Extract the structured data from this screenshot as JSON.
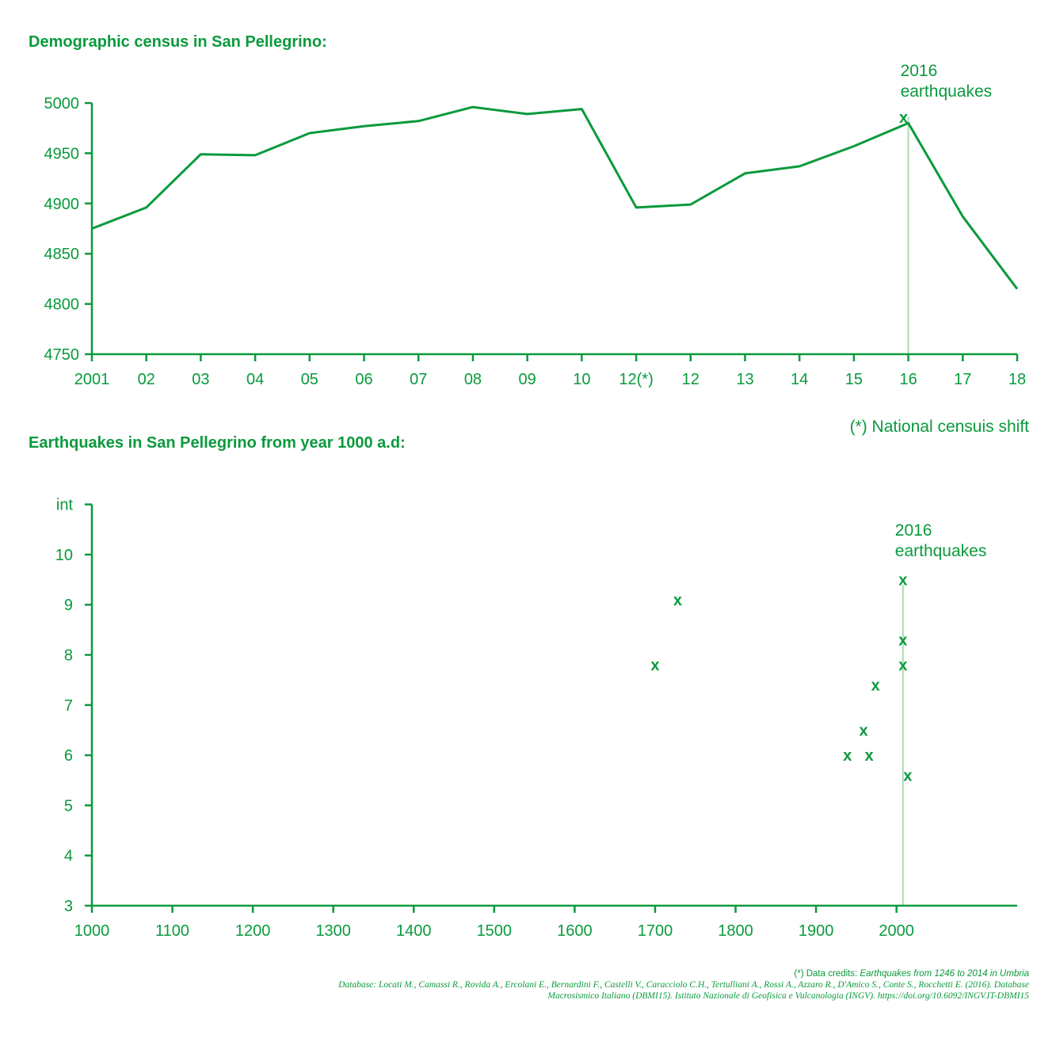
{
  "colors": {
    "line": "#0a9a3c",
    "marker": "#0a9a3c",
    "highlight": "#a8dcb4"
  },
  "note": "(*) National censuis shift",
  "credits": {
    "lead": "(*) Data credits: ",
    "lead_italic": "Earthquakes from 1246 to 2014 in Umbria",
    "line2": "Database: Locati M., Camassi R., Rovida A., Ercolani E., Bernardini F., Castelli V., Caracciolo C.H., Tertulliani A., Rossi A., Azzaro R., D'Amico S., Conte S., Rocchetti E. (2016). Database",
    "line3": "Macrosismico Italiano (DBMI15). Istituto Nazionale di Geofisica e Vulcanologia (INGV). https://doi.org/10.6092/INGV.IT-DBMI15"
  },
  "chart_data": [
    {
      "type": "line",
      "title": "Demographic census in San Pellegrino:",
      "categories": [
        "2001",
        "02",
        "03",
        "04",
        "05",
        "06",
        "07",
        "08",
        "09",
        "10",
        "12(*)",
        "12",
        "13",
        "14",
        "15",
        "16",
        "17",
        "18"
      ],
      "values": [
        4875,
        4896,
        4949,
        4948,
        4970,
        4977,
        4982,
        4996,
        4989,
        4994,
        4896,
        4899,
        4930,
        4937,
        4957,
        4980,
        4887,
        4815
      ],
      "ylim": [
        4750,
        5000
      ],
      "yticks": [
        4750,
        4800,
        4850,
        4900,
        4950,
        5000
      ],
      "annotation": {
        "text_line1": "2016",
        "text_line2": "earthquakes",
        "category": "16",
        "marker_value": 4986
      },
      "grid": false
    },
    {
      "type": "scatter",
      "title": "Earthquakes in San Pellegrino from year 1000 a.d:",
      "ylabel": "int",
      "xlim": [
        1000,
        2150
      ],
      "xticks": [
        1000,
        1100,
        1200,
        1300,
        1400,
        1500,
        1600,
        1700,
        1800,
        1900,
        2000
      ],
      "ylim": [
        3,
        11
      ],
      "yticks": [
        3,
        4,
        5,
        6,
        7,
        8,
        9,
        10
      ],
      "points": [
        {
          "x": 1700,
          "y": 7.8
        },
        {
          "x": 1728,
          "y": 9.1
        },
        {
          "x": 1939,
          "y": 6.0
        },
        {
          "x": 1959,
          "y": 6.5
        },
        {
          "x": 1966,
          "y": 6.0
        },
        {
          "x": 1974,
          "y": 7.4
        },
        {
          "x": 2008,
          "y": 9.5
        },
        {
          "x": 2008,
          "y": 8.3
        },
        {
          "x": 2008,
          "y": 7.8
        },
        {
          "x": 2014,
          "y": 5.6
        }
      ],
      "annotation": {
        "text_line1": "2016",
        "text_line2": "earthquakes",
        "x": 2008
      },
      "grid": false
    }
  ]
}
